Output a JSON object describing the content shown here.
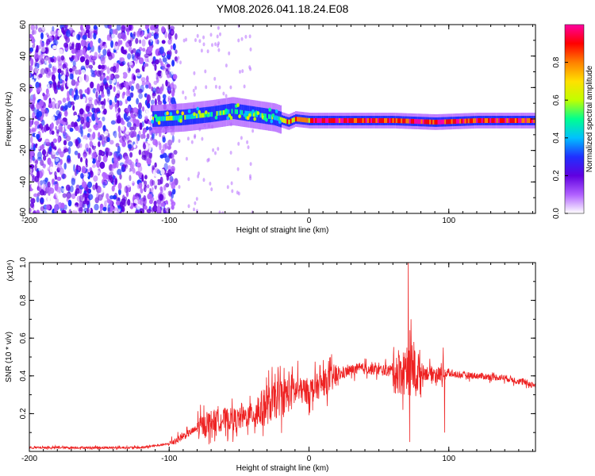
{
  "title": "YM08.2026.041.18.24.E08",
  "chart_data": [
    {
      "type": "heatmap",
      "xlabel": "Height of straight line (km)",
      "ylabel": "Frequency (Hz)",
      "xlim": [
        -200,
        162
      ],
      "ylim": [
        -60,
        60
      ],
      "xticks": [
        -200,
        -100,
        0,
        100
      ],
      "yticks": [
        -60,
        -40,
        -20,
        0,
        20,
        40,
        60
      ],
      "colorbar": {
        "label": "Normalized spectral amplitude",
        "ticks": [
          "0.0",
          "0.2",
          "0.4",
          "0.6",
          "0.8"
        ],
        "tick_values": [
          0.0,
          0.2,
          0.4,
          0.6,
          0.8
        ],
        "range": [
          0,
          1
        ],
        "colors": [
          "#ffffff",
          "#b060ff",
          "#6000e0",
          "#2030ff",
          "#00c0ff",
          "#00ff90",
          "#c0ff00",
          "#ffe000",
          "#ff8000",
          "#ff0000",
          "#ff00a0"
        ]
      },
      "ridge": [
        [
          -110,
          0
        ],
        [
          -90,
          1
        ],
        [
          -70,
          3
        ],
        [
          -55,
          5
        ],
        [
          -40,
          3
        ],
        [
          -25,
          1
        ],
        [
          -15,
          -2
        ],
        [
          -10,
          0
        ],
        [
          0,
          -1
        ],
        [
          30,
          -1
        ],
        [
          60,
          -1
        ],
        [
          90,
          -2
        ],
        [
          120,
          -1
        ],
        [
          162,
          -1
        ]
      ]
    },
    {
      "type": "line",
      "xlabel": "Height of straight line (km)",
      "ylabel": "SNR (10 * v/v)",
      "yscale_label": "(x10⁴)",
      "xlim": [
        -200,
        162
      ],
      "ylim": [
        0,
        1.0
      ],
      "xticks": [
        -200,
        -100,
        0,
        100
      ],
      "yticks": [
        "0.2",
        "0.4",
        "0.6",
        "0.8",
        "1.0"
      ],
      "ytick_values": [
        0.2,
        0.4,
        0.6,
        0.8,
        1.0
      ],
      "color": "#ee2222",
      "trend": [
        [
          -200,
          0.02
        ],
        [
          -120,
          0.02
        ],
        [
          -100,
          0.04
        ],
        [
          -90,
          0.08
        ],
        [
          -80,
          0.12
        ],
        [
          -70,
          0.16
        ],
        [
          -60,
          0.17
        ],
        [
          -50,
          0.17
        ],
        [
          -40,
          0.2
        ],
        [
          -30,
          0.24
        ],
        [
          -20,
          0.29
        ],
        [
          -10,
          0.32
        ],
        [
          0,
          0.32
        ],
        [
          10,
          0.36
        ],
        [
          20,
          0.4
        ],
        [
          30,
          0.43
        ],
        [
          40,
          0.44
        ],
        [
          50,
          0.43
        ],
        [
          60,
          0.43
        ],
        [
          70,
          0.42
        ],
        [
          80,
          0.42
        ],
        [
          90,
          0.41
        ],
        [
          100,
          0.41
        ],
        [
          120,
          0.4
        ],
        [
          140,
          0.39
        ],
        [
          162,
          0.35
        ]
      ],
      "spikes": [
        [
          -65,
          0.24
        ],
        [
          -55,
          0.28
        ],
        [
          -48,
          0.25
        ],
        [
          -30,
          0.35
        ],
        [
          -22,
          0.42
        ],
        [
          -12,
          0.45
        ],
        [
          -8,
          0.48
        ],
        [
          8,
          0.45
        ],
        [
          50,
          0.47
        ],
        [
          70,
          0.55
        ],
        [
          71,
          1.0
        ],
        [
          72,
          0.05
        ],
        [
          73,
          0.7
        ],
        [
          75,
          0.58
        ],
        [
          96,
          0.55
        ],
        [
          97,
          0.1
        ]
      ]
    }
  ]
}
